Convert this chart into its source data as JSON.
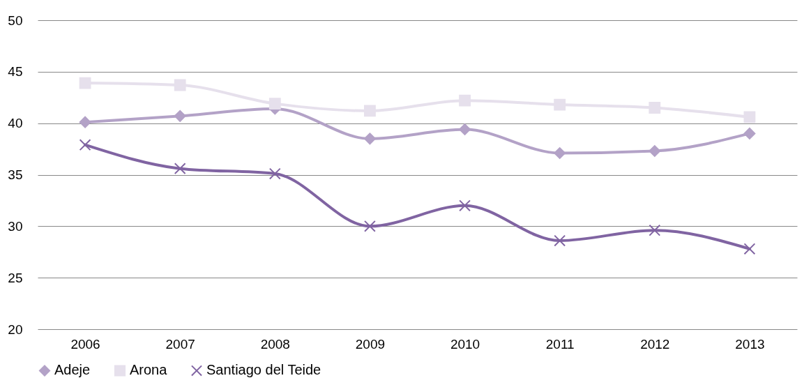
{
  "chart_data": {
    "type": "line",
    "categories": [
      "2006",
      "2007",
      "2008",
      "2009",
      "2010",
      "2011",
      "2012",
      "2013"
    ],
    "series": [
      {
        "name": "Adeje",
        "color": "#b3a2c7",
        "marker": "diamond",
        "values": [
          40.1,
          40.7,
          41.4,
          38.5,
          39.4,
          37.1,
          37.3,
          39.0
        ]
      },
      {
        "name": "Arona",
        "color": "#e6e0ec",
        "marker": "square",
        "values": [
          43.9,
          43.7,
          41.9,
          41.2,
          42.2,
          41.8,
          41.5,
          40.6
        ]
      },
      {
        "name": "Santiago del Teide",
        "color": "#8064a2",
        "marker": "cross",
        "values": [
          37.9,
          35.6,
          35.1,
          30.0,
          32.0,
          28.6,
          29.6,
          27.8
        ]
      }
    ],
    "ylim": [
      20,
      50
    ],
    "yticks": [
      20,
      25,
      30,
      35,
      40,
      45,
      50
    ],
    "grid": "y",
    "legend": "bottom"
  }
}
